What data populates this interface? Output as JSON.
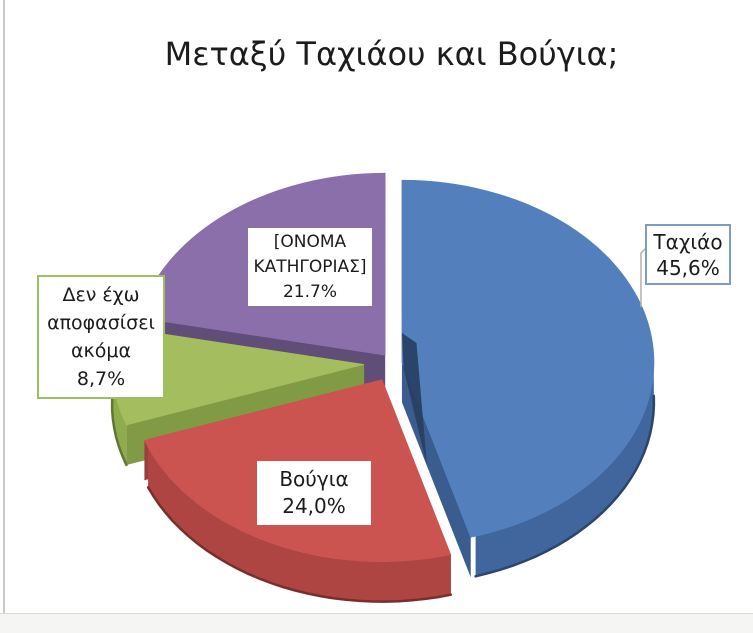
{
  "page": {
    "background": "#ffffff",
    "edge_line_color": "#c9c9c7",
    "footer_strip_color": "#f5f5f3"
  },
  "chart_data": {
    "type": "pie",
    "style": "3d-exploded",
    "title": "Μεταξύ Ταχιάου και Βούγια;",
    "start_angle_deg": 0,
    "direction": "clockwise",
    "legend": null,
    "leader_line_color": "#b0b0b0",
    "slices": [
      {
        "label": "Ταχιάο",
        "value": 45.6,
        "display_value": "45,6%",
        "color": "#5380BD",
        "side_color": "#41669E",
        "label_lines": [
          "Ταχιάο",
          "45,6%"
        ],
        "label_border_color": "#7C9CC8",
        "has_leader_line": true
      },
      {
        "label": "Βούγια",
        "value": 24.0,
        "display_value": "24,0%",
        "color": "#CB5451",
        "side_color": "#AF4542",
        "label_lines": [
          "Βούγια",
          "24,0%"
        ],
        "label_border_color": null,
        "has_leader_line": false
      },
      {
        "label": "Δεν έχω αποφασίσει ακόμα",
        "value": 8.7,
        "display_value": "8,7%",
        "color": "#A3BD5F",
        "side_color": "#8FAC4D",
        "label_lines": [
          "Δεν έχω",
          "αποφασίσει",
          "ακόμα",
          "8,7%"
        ],
        "label_border_color": "#9CBF62",
        "has_leader_line": false
      },
      {
        "label": "[ΟΝΟΜΑ ΚΑΤΗΓΟΡΙΑΣ]",
        "value": 21.7,
        "display_value": "21.7%",
        "color": "#8A6FAB",
        "side_color": "#6B5685",
        "label_lines": [
          "[ΟΝΟΜΑ",
          "ΚΑΤΗΓΟΡΙΑΣ]",
          "21.7%"
        ],
        "label_border_color": null,
        "has_leader_line": false
      }
    ]
  }
}
